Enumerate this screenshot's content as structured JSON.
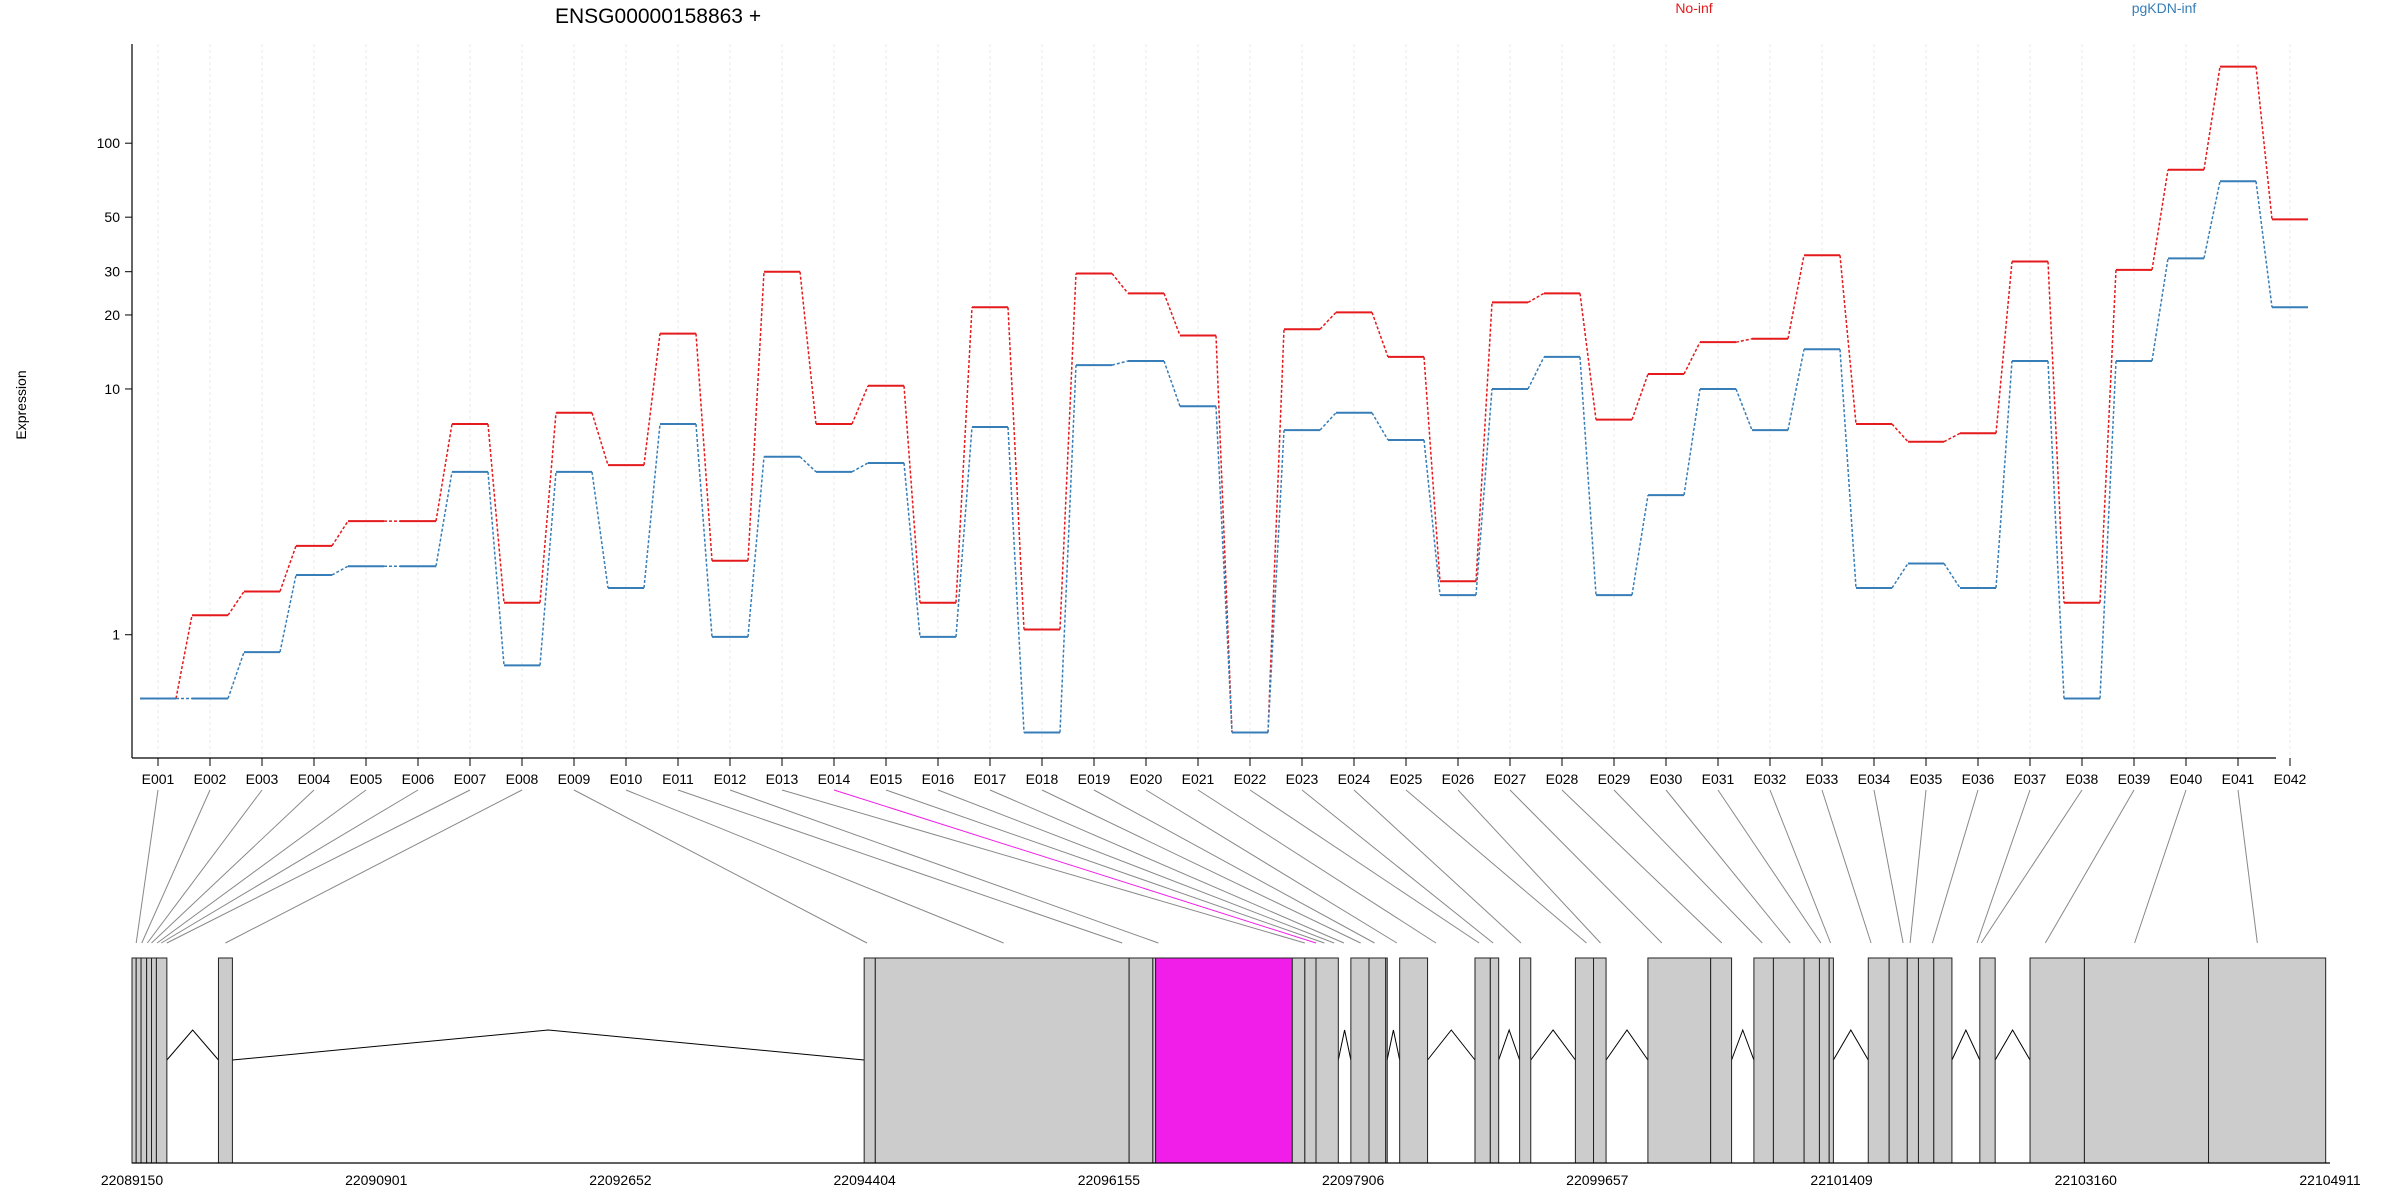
{
  "title": "ENSG00000158863 +",
  "ylabel": "Expression",
  "legend": [
    {
      "name": "No-inf",
      "color": "#e41a1c"
    },
    {
      "name": "pgKDN-inf",
      "color": "#377eb8"
    }
  ],
  "highlight_color": "#f01ee8",
  "chart_data": {
    "type": "line",
    "title": "ENSG00000158863 +",
    "ylabel": "Expression",
    "yscale": "log",
    "ylim": [
      0.38,
      210
    ],
    "yticks": [
      1,
      10,
      20,
      30,
      50,
      100
    ],
    "categories": [
      "E001",
      "E002",
      "E003",
      "E004",
      "E005",
      "E006",
      "E007",
      "E008",
      "E009",
      "E010",
      "E011",
      "E012",
      "E013",
      "E014",
      "E015",
      "E016",
      "E017",
      "E018",
      "E019",
      "E020",
      "E021",
      "E022",
      "E023",
      "E024",
      "E025",
      "E026",
      "E027",
      "E028",
      "E029",
      "E030",
      "E031",
      "E032",
      "E033",
      "E034",
      "E035",
      "E036",
      "E037",
      "E038",
      "E039",
      "E040",
      "E041",
      "E042"
    ],
    "series": [
      {
        "name": "No-inf",
        "color": "#e41a1c",
        "values": [
          0.55,
          1.2,
          1.5,
          2.3,
          2.9,
          2.9,
          7.2,
          1.35,
          8.0,
          4.9,
          16.8,
          2.0,
          30,
          7.2,
          10.3,
          1.35,
          21.5,
          1.05,
          29.5,
          24.5,
          16.5,
          0.4,
          17.5,
          20.5,
          13.5,
          1.65,
          22.5,
          24.5,
          7.5,
          11.5,
          15.5,
          16,
          35,
          7.2,
          6.1,
          6.6,
          33,
          1.35,
          30.5,
          78,
          205,
          49
        ]
      },
      {
        "name": "pgKDN-inf",
        "color": "#377eb8",
        "values": [
          0.55,
          0.55,
          0.85,
          1.75,
          1.9,
          1.9,
          4.6,
          0.75,
          4.6,
          1.55,
          7.2,
          0.98,
          5.3,
          4.6,
          5.0,
          0.98,
          7.0,
          0.4,
          12.5,
          13,
          8.5,
          0.4,
          6.8,
          8.0,
          6.2,
          1.45,
          10,
          13.5,
          1.45,
          3.7,
          10,
          6.8,
          14.5,
          1.55,
          1.95,
          1.55,
          13,
          0.55,
          13,
          34,
          70,
          21.5
        ]
      }
    ],
    "genomic_axis_labels": [
      "22089150",
      "22090901",
      "22092652",
      "22094404",
      "22096155",
      "22097906",
      "22099657",
      "22101409",
      "22103160",
      "22104911"
    ],
    "genomic_range": [
      22089150,
      22104911
    ],
    "exons": [
      [
        22089150,
        22089180
      ],
      [
        22089180,
        22089215
      ],
      [
        22089215,
        22089255
      ],
      [
        22089255,
        22089290
      ],
      [
        22089290,
        22089325
      ],
      [
        22089325,
        22089400
      ],
      [
        22089770,
        22089870
      ],
      [
        22094400,
        22094480
      ],
      [
        22094480,
        22096300
      ],
      [
        22096300,
        22096470
      ],
      [
        22096470,
        22096490
      ],
      [
        22096490,
        22097470
      ],
      [
        22097470,
        22097560
      ],
      [
        22097560,
        22097640
      ],
      [
        22097640,
        22097800
      ],
      [
        22097890,
        22098020
      ],
      [
        22098020,
        22098140
      ],
      [
        22098140,
        22098150
      ],
      [
        22098240,
        22098440
      ],
      [
        22098780,
        22098890
      ],
      [
        22098890,
        22098950
      ],
      [
        22099100,
        22099180
      ],
      [
        22099500,
        22099630
      ],
      [
        22099630,
        22099720
      ],
      [
        22100020,
        22100470
      ],
      [
        22100470,
        22100620
      ],
      [
        22100780,
        22100920
      ],
      [
        22100920,
        22101140
      ],
      [
        22101140,
        22101250
      ],
      [
        22101250,
        22101320
      ],
      [
        22101320,
        22101350
      ],
      [
        22101600,
        22101750
      ],
      [
        22101750,
        22101880
      ],
      [
        22101880,
        22101960
      ],
      [
        22101960,
        22102070
      ],
      [
        22102070,
        22102200
      ],
      [
        22102400,
        22102510
      ],
      [
        22102760,
        22103150
      ],
      [
        22103150,
        22104040
      ],
      [
        22104040,
        22104880
      ]
    ],
    "exon_anchor_positions": [
      22089180,
      22089220,
      22089260,
      22089290,
      22089330,
      22089360,
      22089400,
      22089820,
      22094420,
      22095400,
      22096250,
      22096510,
      22097560,
      22097640,
      22097700,
      22097770,
      22097840,
      22097960,
      22098060,
      22098220,
      22098500,
      22098810,
      22098910,
      22099110,
      22099580,
      22099680,
      22100120,
      22100550,
      22100840,
      22101040,
      22101260,
      22101330,
      22101620,
      22101850,
      22101900,
      22102060,
      22102380,
      22102410,
      22102870,
      22103510,
      22104390
    ],
    "highlight_exon_index": 13,
    "highlight_region": [
      22096490,
      22097470
    ]
  }
}
